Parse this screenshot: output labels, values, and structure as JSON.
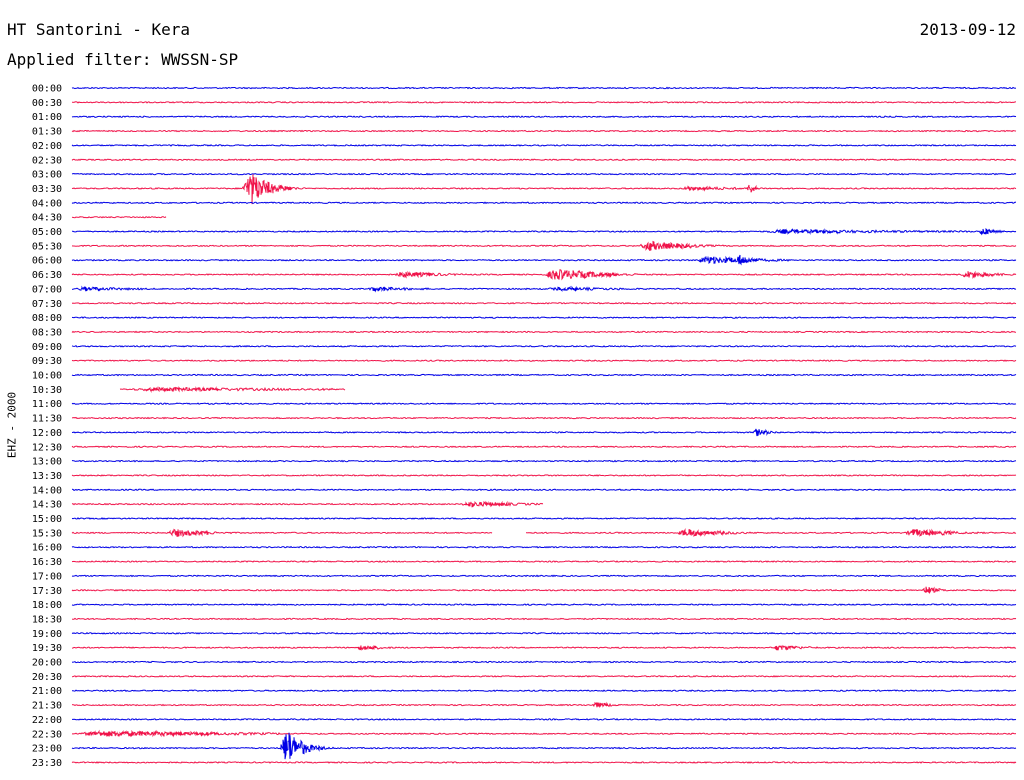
{
  "header": {
    "title": "HT Santorini - Kera",
    "date": "2013-09-12",
    "filter": "Applied filter: WWSSN-SP"
  },
  "chart_data": {
    "type": "line",
    "title": "HT Santorini - Kera",
    "ylabel": "EHZ - 2000",
    "xlabel": "",
    "colors": {
      "even_row": "#0000e6",
      "odd_row": "#f0144a"
    },
    "rows": [
      "00:00",
      "00:30",
      "01:00",
      "01:30",
      "02:00",
      "02:30",
      "03:00",
      "03:30",
      "04:00",
      "04:30",
      "05:00",
      "05:30",
      "06:00",
      "06:30",
      "07:00",
      "07:30",
      "08:00",
      "08:30",
      "09:00",
      "09:30",
      "10:00",
      "10:30",
      "11:00",
      "11:30",
      "12:00",
      "12:30",
      "13:00",
      "13:30",
      "14:00",
      "14:30",
      "15:00",
      "15:30",
      "16:00",
      "16:30",
      "17:00",
      "17:30",
      "18:00",
      "18:30",
      "19:00",
      "19:30",
      "20:00",
      "20:30",
      "21:00",
      "21:30",
      "22:00",
      "22:30",
      "23:00",
      "23:30"
    ],
    "events": [
      {
        "row": 7,
        "start": 0.18,
        "amp": 18,
        "dur": 0.06,
        "decay": 0.3
      },
      {
        "row": 7,
        "start": 0.715,
        "amp": 6,
        "dur": 0.02,
        "decay": 0.3
      },
      {
        "row": 7,
        "start": 0.64,
        "amp": 2,
        "dur": 0.09,
        "decay": 0.9
      },
      {
        "row": 46,
        "start": 0.22,
        "amp": 20,
        "dur": 0.05,
        "decay": 0.3
      },
      {
        "row": 11,
        "start": 0.6,
        "amp": 5,
        "dur": 0.07,
        "decay": 0.6
      },
      {
        "row": 12,
        "start": 0.66,
        "amp": 4,
        "dur": 0.08,
        "decay": 0.7
      },
      {
        "row": 12,
        "start": 0.7,
        "amp": 6,
        "dur": 0.04,
        "decay": 0.4
      },
      {
        "row": 13,
        "start": 0.34,
        "amp": 3,
        "dur": 0.06,
        "decay": 0.8
      },
      {
        "row": 13,
        "start": 0.5,
        "amp": 6,
        "dur": 0.08,
        "decay": 0.6
      },
      {
        "row": 13,
        "start": 0.94,
        "amp": 4,
        "dur": 0.05,
        "decay": 0.6
      },
      {
        "row": 14,
        "start": 0.0,
        "amp": 2,
        "dur": 0.08,
        "decay": 0.9
      },
      {
        "row": 14,
        "start": 0.31,
        "amp": 2,
        "dur": 0.07,
        "decay": 0.9
      },
      {
        "row": 14,
        "start": 0.5,
        "amp": 2,
        "dur": 0.09,
        "decay": 0.9
      },
      {
        "row": 10,
        "start": 0.72,
        "amp": 2,
        "dur": 0.23,
        "decay": 0.9
      },
      {
        "row": 10,
        "start": 0.96,
        "amp": 4,
        "dur": 0.03,
        "decay": 0.5
      },
      {
        "row": 21,
        "start": 0.05,
        "amp": 2,
        "dur": 0.25,
        "decay": 0.95
      },
      {
        "row": 24,
        "start": 0.72,
        "amp": 4,
        "dur": 0.03,
        "decay": 0.5
      },
      {
        "row": 29,
        "start": 0.41,
        "amp": 3,
        "dur": 0.08,
        "decay": 0.7
      },
      {
        "row": 31,
        "start": 0.1,
        "amp": 4,
        "dur": 0.06,
        "decay": 0.6
      },
      {
        "row": 31,
        "start": 0.64,
        "amp": 4,
        "dur": 0.07,
        "decay": 0.6
      },
      {
        "row": 31,
        "start": 0.88,
        "amp": 4,
        "dur": 0.07,
        "decay": 0.6
      },
      {
        "row": 35,
        "start": 0.9,
        "amp": 4,
        "dur": 0.03,
        "decay": 0.5
      },
      {
        "row": 39,
        "start": 0.3,
        "amp": 3,
        "dur": 0.04,
        "decay": 0.6
      },
      {
        "row": 39,
        "start": 0.74,
        "amp": 3,
        "dur": 0.05,
        "decay": 0.6
      },
      {
        "row": 43,
        "start": 0.55,
        "amp": 3,
        "dur": 0.03,
        "decay": 0.6
      },
      {
        "row": 45,
        "start": 0.0,
        "amp": 3,
        "dur": 0.2,
        "decay": 0.9
      }
    ],
    "gaps": [
      {
        "row": 9,
        "start": 0.1,
        "end": 1.0
      },
      {
        "row": 21,
        "start": 0.0,
        "end": 0.05
      },
      {
        "row": 21,
        "start": 0.29,
        "end": 1.0
      },
      {
        "row": 29,
        "start": 0.5,
        "end": 1.0
      },
      {
        "row": 31,
        "start": 0.445,
        "end": 0.48
      }
    ]
  }
}
